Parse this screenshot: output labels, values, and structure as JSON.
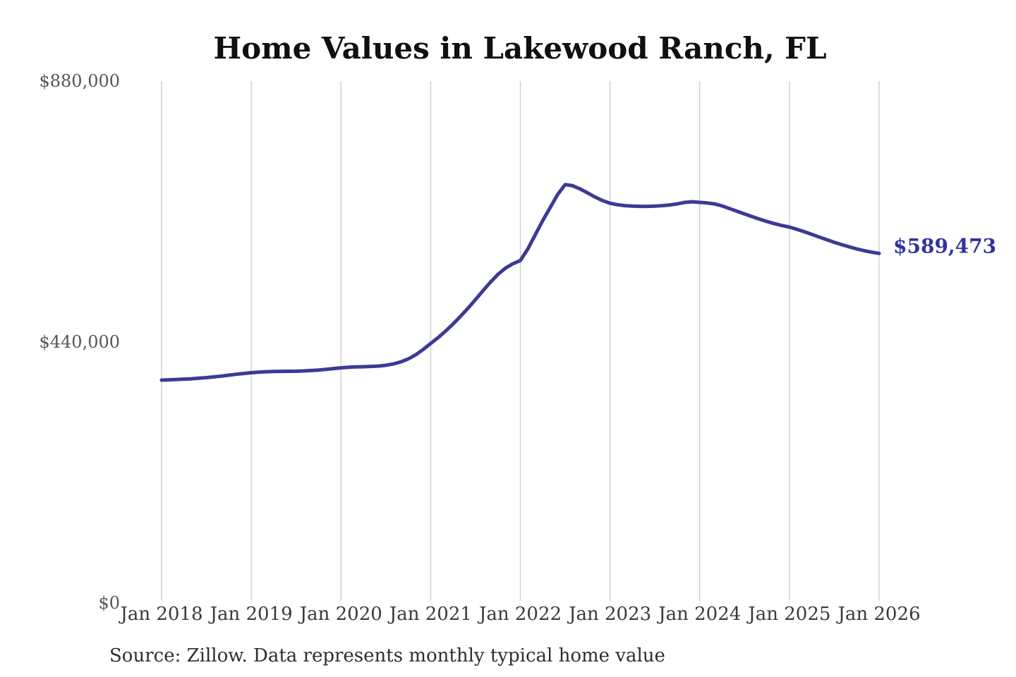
{
  "title": "Home Values in Lakewood Ranch, FL",
  "source_note": "Source: Zillow. Data represents monthly typical home value",
  "annotation": {
    "label": "$589,473"
  },
  "colors": {
    "background": "#ffffff",
    "title": "#101010",
    "gridline": "#cccccc",
    "line": "#3d3a94",
    "annotation": "#3232a0",
    "y_label": "#565656",
    "x_label": "#3a3a3a",
    "source": "#2e2e2e"
  },
  "chart_data": {
    "type": "line",
    "title": "Home Values in Lakewood Ranch, FL",
    "x_interval": "monthly",
    "x_range": [
      "Jan 2018",
      "Jan 2026"
    ],
    "x_tick_labels": [
      "Jan 2018",
      "Jan 2019",
      "Jan 2020",
      "Jan 2021",
      "Jan 2022",
      "Jan 2023",
      "Jan 2024",
      "Jan 2025",
      "Jan 2026"
    ],
    "y_tick_labels": [
      "$880,000",
      "$440,000",
      "$0"
    ],
    "y_tick_values": [
      880000,
      440000,
      0
    ],
    "ylim": [
      0,
      880000
    ],
    "grid": "vertical-only",
    "legend": "none",
    "line_color": "#3d3a94",
    "values": [
      375800,
      376300,
      376800,
      377400,
      378100,
      379000,
      380000,
      381200,
      382600,
      384100,
      385600,
      387000,
      388300,
      389200,
      389900,
      390300,
      390500,
      390600,
      390800,
      391200,
      391900,
      392800,
      394000,
      395300,
      396500,
      397400,
      398000,
      398400,
      398800,
      399500,
      400700,
      403000,
      406500,
      411500,
      418500,
      427500,
      437500,
      447500,
      458500,
      470500,
      483500,
      497000,
      511500,
      526500,
      541000,
      554000,
      564500,
      572000,
      577500,
      597000,
      621000,
      645000,
      667000,
      689000,
      705500,
      703500,
      698000,
      691500,
      684500,
      678500,
      674000,
      671500,
      670000,
      669200,
      668800,
      668800,
      669200,
      670000,
      671200,
      673000,
      675500,
      676500,
      675500,
      674500,
      673000,
      669500,
      665000,
      660500,
      656000,
      651500,
      647300,
      643200,
      639500,
      636500,
      633800,
      630000,
      626000,
      621500,
      617000,
      612500,
      608200,
      604200,
      600500,
      597000,
      594000,
      591500,
      589473
    ],
    "latest_value": 589473,
    "latest_value_label": "$589,473"
  }
}
